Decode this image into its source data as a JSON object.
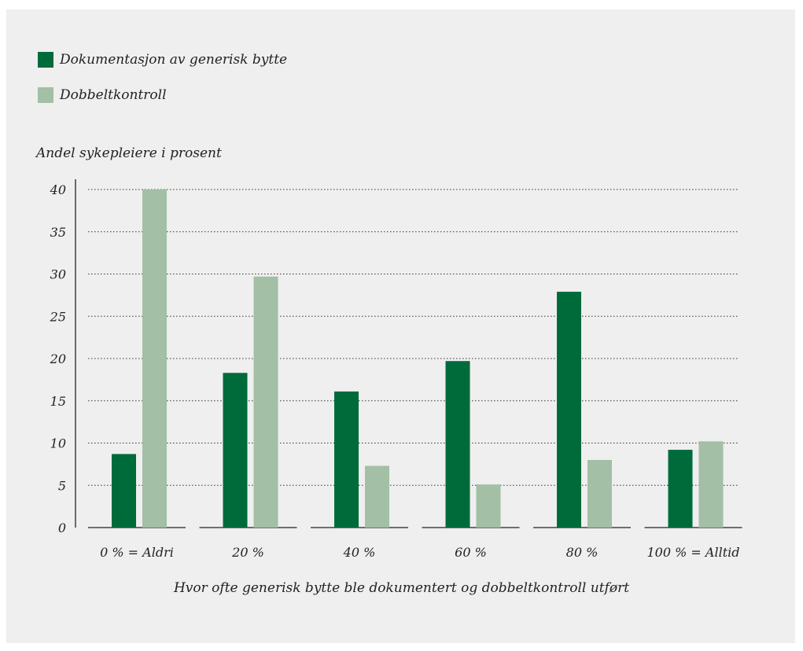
{
  "chart_data": {
    "type": "bar",
    "ylabel": "Andel sykepleiere i prosent",
    "xlabel": "Hvor ofte generisk bytte ble dokumentert og dobbeltkontroll utført",
    "categories": [
      "0 % = Aldri",
      "20 %",
      "40 %",
      "60 %",
      "80 %",
      "100 % = Alltid"
    ],
    "series": [
      {
        "name": "Dokumentasjon av generisk bytte",
        "color": "#006b3a",
        "values": [
          8.7,
          18.3,
          16.1,
          19.7,
          27.9,
          9.2
        ]
      },
      {
        "name": "Dobbeltkontroll",
        "color": "#a3bfa5",
        "values": [
          40.0,
          29.7,
          7.3,
          5.1,
          8.0,
          10.2
        ]
      }
    ],
    "ylim": [
      0,
      40
    ],
    "yticks": [
      0,
      5,
      10,
      15,
      20,
      25,
      30,
      35,
      40
    ],
    "grid": true,
    "legend_position": "top-left"
  }
}
